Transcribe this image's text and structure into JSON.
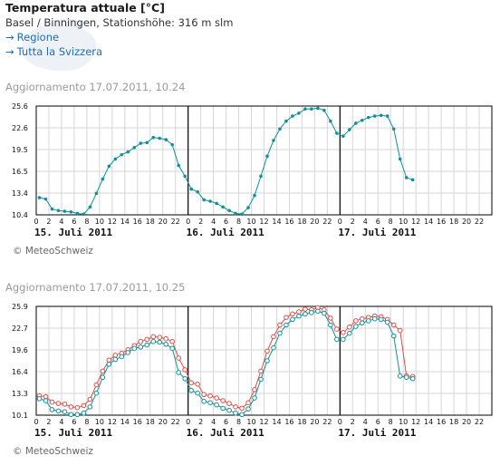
{
  "header": {
    "title": "Temperatura attuale [°C]",
    "station": "Basel / Binningen, Stationshöhe: 316 m slm",
    "links": [
      {
        "label": "Regione"
      },
      {
        "label": "Tutta la Svizzera"
      }
    ]
  },
  "credit": "© MeteoSchweiz",
  "colors": {
    "teal": "#10909a",
    "red": "#e04b47",
    "grid": "#d6d6d6"
  },
  "chart_data": [
    {
      "type": "line",
      "update_label": "Aggiornamento 17.07.2011, 10.24",
      "ylim": [
        10.4,
        25.6
      ],
      "y_ticks": [
        "10.4",
        "13.4",
        "16.5",
        "19.5",
        "22.6",
        "25.6"
      ],
      "x_hour_ticks": [
        "0",
        "2",
        "4",
        "6",
        "8",
        "10",
        "12",
        "14",
        "16",
        "18",
        "20",
        "22",
        "0",
        "2",
        "4",
        "6",
        "8",
        "10",
        "12",
        "14",
        "16",
        "18",
        "20",
        "22",
        "0",
        "2",
        "4",
        "6",
        "8",
        "10",
        "12",
        "14",
        "16",
        "18",
        "20",
        "22"
      ],
      "day_labels": [
        "15. Juli 2011",
        "16. Juli 2011",
        "17. Juli 2011"
      ],
      "hours_total": 72,
      "grid": true,
      "series": [
        {
          "color": "#10909a",
          "values": [
            12.8,
            12.6,
            11.2,
            11.0,
            10.9,
            10.8,
            10.6,
            10.5,
            11.5,
            13.4,
            15.4,
            17.2,
            18.2,
            18.8,
            19.2,
            19.8,
            20.4,
            20.5,
            21.2,
            21.1,
            20.9,
            20.2,
            17.3,
            15.8,
            14.0,
            13.6,
            12.5,
            12.3,
            12.0,
            11.5,
            11.0,
            10.6,
            10.5,
            11.4,
            13.1,
            15.8,
            18.6,
            20.8,
            22.4,
            23.5,
            24.2,
            24.6,
            25.2,
            25.2,
            25.3,
            25.0,
            23.5,
            21.8,
            21.4,
            22.3,
            23.2,
            23.6,
            24.0,
            24.2,
            24.3,
            24.2,
            22.4,
            18.2,
            15.6,
            15.3
          ]
        }
      ]
    },
    {
      "type": "line",
      "update_label": "Aggiornamento 17.07.2011, 10.25",
      "ylim": [
        10.1,
        25.9
      ],
      "y_ticks": [
        "10.1",
        "13.3",
        "16.4",
        "19.6",
        "22.7",
        "25.9"
      ],
      "x_hour_ticks": [
        "0",
        "2",
        "4",
        "6",
        "8",
        "10",
        "12",
        "14",
        "16",
        "18",
        "20",
        "22",
        "0",
        "2",
        "4",
        "6",
        "8",
        "10",
        "12",
        "14",
        "16",
        "18",
        "20",
        "22",
        "0",
        "2",
        "4",
        "6",
        "8",
        "10",
        "12",
        "14",
        "16",
        "18",
        "20",
        "22"
      ],
      "day_labels": [
        "15. Juli 2011",
        "16. Juli 2011",
        "17. Juli 2011"
      ],
      "hours_total": 72,
      "grid": true,
      "series": [
        {
          "color": "#e04b47",
          "values": [
            12.9,
            12.8,
            12.0,
            11.8,
            11.7,
            11.3,
            11.2,
            11.5,
            12.4,
            14.5,
            16.5,
            18.1,
            18.8,
            19.1,
            19.6,
            20.2,
            20.8,
            21.1,
            21.5,
            21.4,
            21.2,
            20.8,
            18.4,
            16.7,
            14.8,
            14.6,
            13.1,
            12.9,
            12.6,
            12.2,
            11.8,
            11.3,
            11.1,
            11.9,
            13.8,
            16.5,
            19.4,
            21.5,
            23.2,
            24.3,
            24.8,
            25.1,
            25.5,
            25.4,
            25.7,
            25.4,
            24.2,
            22.6,
            22.1,
            22.9,
            23.8,
            24.1,
            24.3,
            24.5,
            24.4,
            24.0,
            23.2,
            22.4,
            15.8,
            15.7
          ]
        },
        {
          "color": "#10909a",
          "values": [
            12.5,
            12.2,
            10.9,
            10.7,
            10.6,
            10.2,
            10.2,
            10.4,
            11.3,
            13.3,
            15.6,
            17.5,
            18.2,
            18.6,
            19.2,
            19.8,
            20.0,
            20.3,
            20.8,
            20.7,
            20.4,
            19.8,
            16.3,
            15.4,
            13.7,
            13.3,
            12.1,
            11.9,
            11.6,
            11.1,
            10.8,
            10.4,
            10.2,
            11.0,
            12.6,
            15.3,
            18.0,
            19.9,
            22.0,
            23.2,
            24.0,
            24.5,
            24.8,
            25.0,
            25.2,
            24.9,
            23.2,
            21.1,
            21.1,
            22.0,
            23.0,
            23.5,
            23.8,
            24.1,
            24.0,
            23.6,
            21.6,
            15.8,
            15.6,
            15.4
          ]
        }
      ]
    }
  ]
}
